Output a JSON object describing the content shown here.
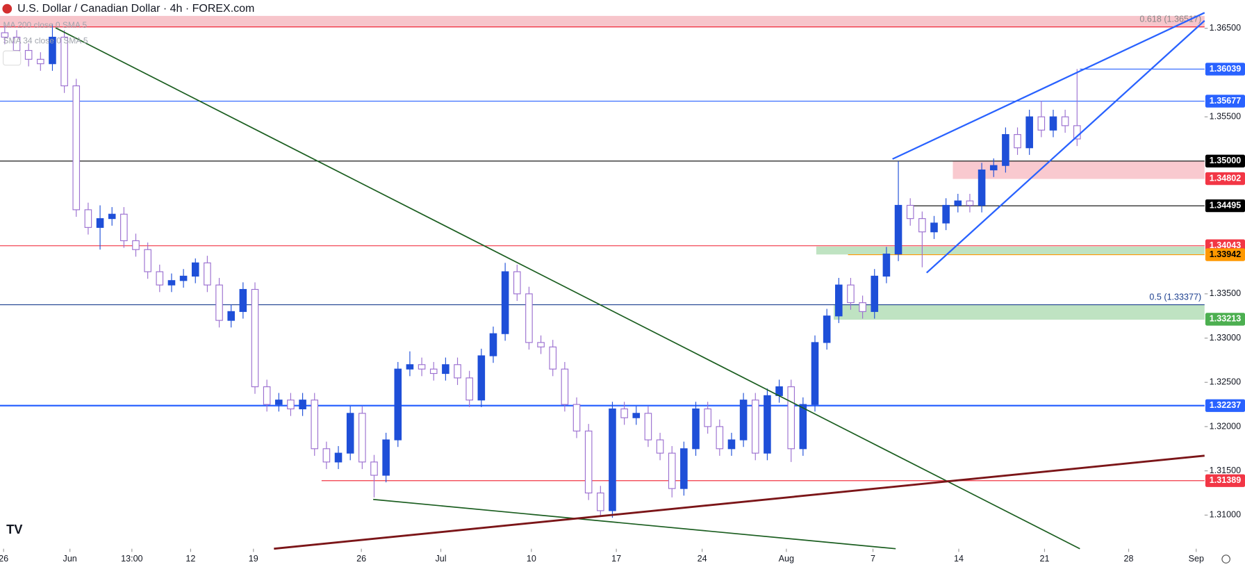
{
  "chart_data": {
    "type": "candlestick",
    "title": "U.S. Dollar / Canadian Dollar · 4h · FOREX.com",
    "indicators": [
      "MA 200 close 0 SMA 5",
      "SMA 34 close 0 SMA 5"
    ],
    "up_color": "#1e4fd8",
    "down_color": "#9b6fd0",
    "xlim": [
      -0.4,
      100.7
    ],
    "xticks": [
      {
        "value": -0.1,
        "label": "26"
      },
      {
        "value": 5.47,
        "label": "Jun"
      },
      {
        "value": 10.67,
        "label": "13:00"
      },
      {
        "value": 15.6,
        "label": "12"
      },
      {
        "value": 20.87,
        "label": "19"
      },
      {
        "value": 29.93,
        "label": "26"
      },
      {
        "value": 36.6,
        "label": "Jul"
      },
      {
        "value": 44.2,
        "label": "10"
      },
      {
        "value": 51.33,
        "label": "17"
      },
      {
        "value": 58.53,
        "label": "24"
      },
      {
        "value": 65.6,
        "label": "Aug"
      },
      {
        "value": 72.87,
        "label": "7"
      },
      {
        "value": 80.07,
        "label": "14"
      },
      {
        "value": 87.27,
        "label": "21"
      },
      {
        "value": 94.33,
        "label": "28"
      },
      {
        "value": 100,
        "label": "Sep"
      }
    ],
    "ylim": [
      1.3062,
      1.3682
    ],
    "yticks": [
      {
        "value": 1.365,
        "label": "1.36500"
      },
      {
        "value": 1.355,
        "label": "1.35500"
      },
      {
        "value": 1.335,
        "label": "1.33500"
      },
      {
        "value": 1.33,
        "label": "1.33000"
      },
      {
        "value": 1.325,
        "label": "1.32500"
      },
      {
        "value": 1.32,
        "label": "1.32000"
      },
      {
        "value": 1.315,
        "label": "1.31500"
      },
      {
        "value": 1.31,
        "label": "1.31000"
      }
    ],
    "open": [
      1.3645,
      1.364,
      1.3625,
      1.3615,
      1.361,
      1.364,
      1.3585,
      1.3445,
      1.3425,
      1.3435,
      1.344,
      1.341,
      1.34,
      1.3375,
      1.336,
      1.3365,
      1.337,
      1.3385,
      1.336,
      1.332,
      1.333,
      1.3355,
      1.3245,
      1.3225,
      1.323,
      1.322,
      1.323,
      1.3175,
      1.316,
      1.317,
      1.3215,
      1.316,
      1.3145,
      1.3185,
      1.3265,
      1.327,
      1.3265,
      1.326,
      1.327,
      1.3255,
      1.323,
      1.328,
      1.3305,
      1.3375,
      1.335,
      1.3295,
      1.329,
      1.3265,
      1.3225,
      1.3195,
      1.3125,
      1.3105,
      1.322,
      1.321,
      1.3215,
      1.3185,
      1.317,
      1.313,
      1.3175,
      1.322,
      1.32,
      1.3175,
      1.3185,
      1.323,
      1.317,
      1.3235,
      1.3245,
      1.3175,
      1.3225,
      1.3295,
      1.3325,
      1.336,
      1.334,
      1.333,
      1.337,
      1.3395,
      1.345,
      1.3435,
      1.342,
      1.343,
      1.345,
      1.3455,
      1.345,
      1.349,
      1.3495,
      1.353,
      1.3515,
      1.355,
      1.3535,
      1.355,
      1.354
    ],
    "high": [
      1.3653,
      1.3648,
      1.3633,
      1.3623,
      1.3655,
      1.3648,
      1.3593,
      1.3453,
      1.345,
      1.3448,
      1.3448,
      1.3418,
      1.3408,
      1.3383,
      1.3373,
      1.3378,
      1.339,
      1.3393,
      1.3368,
      1.3338,
      1.3363,
      1.3363,
      1.3253,
      1.3238,
      1.3238,
      1.3238,
      1.3238,
      1.3183,
      1.3178,
      1.3223,
      1.3223,
      1.3168,
      1.3193,
      1.3273,
      1.3285,
      1.3278,
      1.3273,
      1.3278,
      1.3278,
      1.3263,
      1.3288,
      1.3313,
      1.3385,
      1.3383,
      1.3358,
      1.3303,
      1.3298,
      1.3273,
      1.3233,
      1.3203,
      1.3133,
      1.3228,
      1.3228,
      1.3223,
      1.3223,
      1.3193,
      1.3178,
      1.3183,
      1.3228,
      1.3228,
      1.3208,
      1.3193,
      1.3238,
      1.3238,
      1.3243,
      1.3253,
      1.3253,
      1.3233,
      1.3303,
      1.3333,
      1.3368,
      1.3368,
      1.3348,
      1.3378,
      1.3403,
      1.35,
      1.3458,
      1.3443,
      1.3438,
      1.3458,
      1.3463,
      1.3463,
      1.3498,
      1.3503,
      1.3538,
      1.3538,
      1.3558,
      1.3568,
      1.3558,
      1.3558,
      1.3604
    ],
    "low": [
      1.3632,
      1.3617,
      1.3607,
      1.3602,
      1.3602,
      1.3577,
      1.3437,
      1.3417,
      1.34,
      1.3427,
      1.3402,
      1.3392,
      1.3367,
      1.3352,
      1.3352,
      1.3357,
      1.3362,
      1.3352,
      1.3312,
      1.3312,
      1.3322,
      1.3237,
      1.3217,
      1.3217,
      1.3212,
      1.3212,
      1.3167,
      1.3152,
      1.3152,
      1.3162,
      1.3152,
      1.312,
      1.3137,
      1.3177,
      1.3257,
      1.3257,
      1.3252,
      1.3252,
      1.3247,
      1.3222,
      1.3222,
      1.3272,
      1.3297,
      1.3342,
      1.3287,
      1.3282,
      1.3257,
      1.3217,
      1.3187,
      1.3117,
      1.3098,
      1.3097,
      1.3202,
      1.3202,
      1.3177,
      1.3162,
      1.312,
      1.3122,
      1.3167,
      1.3192,
      1.3167,
      1.3167,
      1.3177,
      1.3162,
      1.3162,
      1.3227,
      1.316,
      1.3167,
      1.3217,
      1.3287,
      1.3317,
      1.3332,
      1.3322,
      1.3322,
      1.3362,
      1.3387,
      1.3427,
      1.338,
      1.3412,
      1.3422,
      1.3442,
      1.3442,
      1.3442,
      1.3482,
      1.3487,
      1.3507,
      1.3507,
      1.3527,
      1.3527,
      1.3532,
      1.3517
    ],
    "close": [
      1.364,
      1.3625,
      1.3615,
      1.361,
      1.364,
      1.3585,
      1.3445,
      1.3425,
      1.3435,
      1.344,
      1.341,
      1.34,
      1.3375,
      1.336,
      1.3365,
      1.337,
      1.3385,
      1.336,
      1.332,
      1.333,
      1.3355,
      1.3245,
      1.3225,
      1.323,
      1.322,
      1.323,
      1.3175,
      1.316,
      1.317,
      1.3215,
      1.316,
      1.3145,
      1.3185,
      1.3265,
      1.327,
      1.3265,
      1.326,
      1.327,
      1.3255,
      1.323,
      1.328,
      1.3305,
      1.3375,
      1.335,
      1.3295,
      1.329,
      1.3265,
      1.3225,
      1.3195,
      1.3125,
      1.3105,
      1.322,
      1.321,
      1.3215,
      1.3185,
      1.317,
      1.313,
      1.3175,
      1.322,
      1.32,
      1.3175,
      1.3185,
      1.323,
      1.317,
      1.3235,
      1.3245,
      1.3175,
      1.3225,
      1.3295,
      1.3325,
      1.336,
      1.334,
      1.333,
      1.337,
      1.3395,
      1.345,
      1.3435,
      1.342,
      1.343,
      1.345,
      1.3455,
      1.345,
      1.349,
      1.3495,
      1.353,
      1.3515,
      1.355,
      1.3535,
      1.355,
      1.354,
      1.3525
    ],
    "levels": [
      {
        "value": 1.36039,
        "color": "#2962ff"
      },
      {
        "value": 1.35677,
        "color": "#2962ff"
      },
      {
        "value": 1.35,
        "label": "1.35000",
        "color": "#000000"
      },
      {
        "value": 1.34802,
        "color": "#f23645"
      },
      {
        "value": 1.34495,
        "color": "#000000"
      },
      {
        "value": 1.34043,
        "color": "#f23645"
      },
      {
        "value": 1.33942,
        "color": "#ff9800"
      },
      {
        "value": 1.33213,
        "color": "#4caf50"
      },
      {
        "value": 1.32237,
        "color": "#2962ff"
      },
      {
        "value": 1.31389,
        "color": "#f23645"
      }
    ],
    "fib_levels": [
      {
        "value": 1.36517,
        "text": "0.618 (1.36517)",
        "color": "#f23645"
      },
      {
        "value": 1.33377,
        "text": "0.5 (1.33377)",
        "color": "#1c3f8f"
      }
    ]
  }
}
